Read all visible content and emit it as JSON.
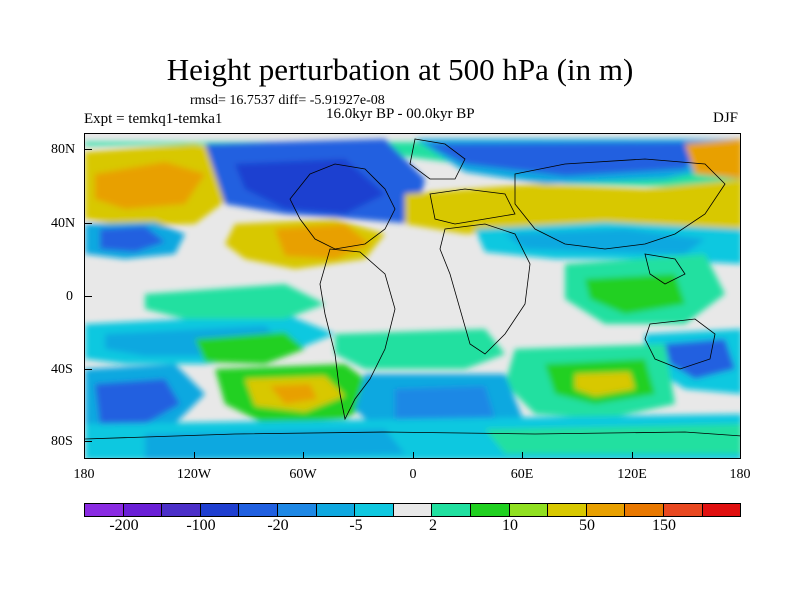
{
  "title": "Height perturbation at 500 hPa (in m)",
  "stats": "rmsd= 16.7537 diff= -5.91927e-08",
  "experiment": "Expt = temkq1-temka1",
  "period": "16.0kyr BP - 00.0kyr BP",
  "season": "DJF",
  "axes": {
    "lat_labels": [
      "80N",
      "40N",
      "0",
      "40S",
      "80S"
    ],
    "lon_labels": [
      "180",
      "120W",
      "60W",
      "0",
      "60E",
      "120E",
      "180"
    ]
  },
  "colorbar": {
    "colors": [
      "#8a2be2",
      "#6a1fd6",
      "#4b2fc8",
      "#1f3fd0",
      "#2060e0",
      "#1e88e5",
      "#0fa8e0",
      "#10c8e0",
      "#e8e8e8",
      "#20e0a0",
      "#20d020",
      "#90e020",
      "#d8c800",
      "#e8a000",
      "#e87800",
      "#e84820",
      "#e01010"
    ],
    "labels": [
      "-200",
      "-100",
      "-20",
      "-5",
      "2",
      "10",
      "50",
      "150"
    ]
  },
  "field_colors": {
    "deep_blue": "#1f3fd0",
    "blue": "#2060e0",
    "mid_blue": "#1e88e5",
    "light_blue": "#0fa8e0",
    "cyan": "#10c8e0",
    "neutral": "#e8e8e8",
    "teal": "#20e0a0",
    "green": "#20d020",
    "lime": "#90e020",
    "yellow": "#d8c800",
    "orange": "#e8a000"
  }
}
